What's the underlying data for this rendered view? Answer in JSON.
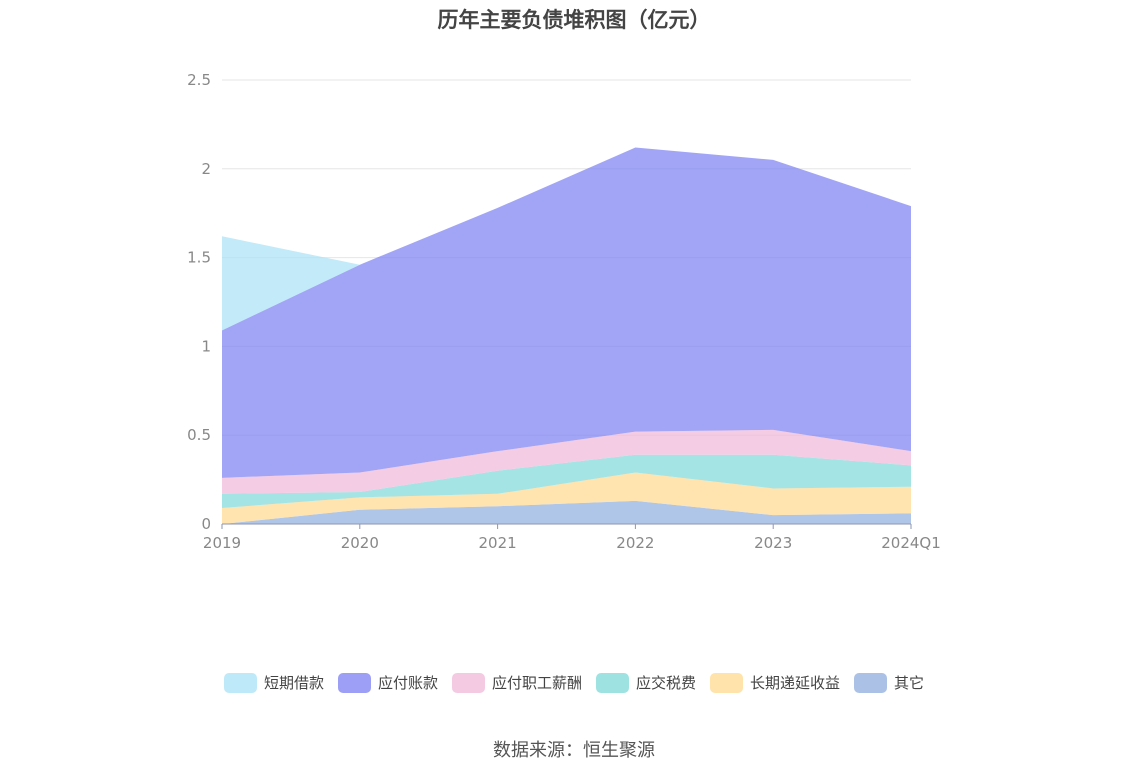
{
  "title": "历年主要负债堆积图（亿元）",
  "source": "数据来源：恒生聚源",
  "chart_data": {
    "type": "area",
    "stacked": true,
    "categories": [
      "2019",
      "2020",
      "2021",
      "2022",
      "2023",
      "2024Q1"
    ],
    "ylim": [
      0,
      2.5
    ],
    "yticks": [
      "0",
      "0.5",
      "1",
      "1.5",
      "2",
      "2.5"
    ],
    "grid": true,
    "legend_position": "bottom",
    "series": [
      {
        "name": "其它",
        "color": "#8FAEDE",
        "values": [
          0.0,
          0.08,
          0.1,
          0.13,
          0.05,
          0.06
        ]
      },
      {
        "name": "长期递延收益",
        "color": "#FFD98E",
        "values": [
          0.09,
          0.07,
          0.07,
          0.16,
          0.15,
          0.15
        ]
      },
      {
        "name": "应交税费",
        "color": "#7FD8D8",
        "values": [
          0.08,
          0.03,
          0.13,
          0.1,
          0.19,
          0.12
        ]
      },
      {
        "name": "应付职工薪酬",
        "color": "#F0B8DA",
        "values": [
          0.09,
          0.11,
          0.11,
          0.13,
          0.14,
          0.08
        ]
      },
      {
        "name": "应付账款",
        "color": "#7B7FF2",
        "values": [
          0.83,
          1.17,
          1.37,
          1.6,
          1.52,
          1.38
        ]
      },
      {
        "name": "短期借款",
        "color": "#A8E1F7",
        "values": [
          0.53,
          0.0,
          0.0,
          0.0,
          0.0,
          0.0
        ]
      }
    ],
    "legend_order": [
      "短期借款",
      "应付账款",
      "应付职工薪酬",
      "应交税费",
      "长期递延收益",
      "其它"
    ]
  }
}
